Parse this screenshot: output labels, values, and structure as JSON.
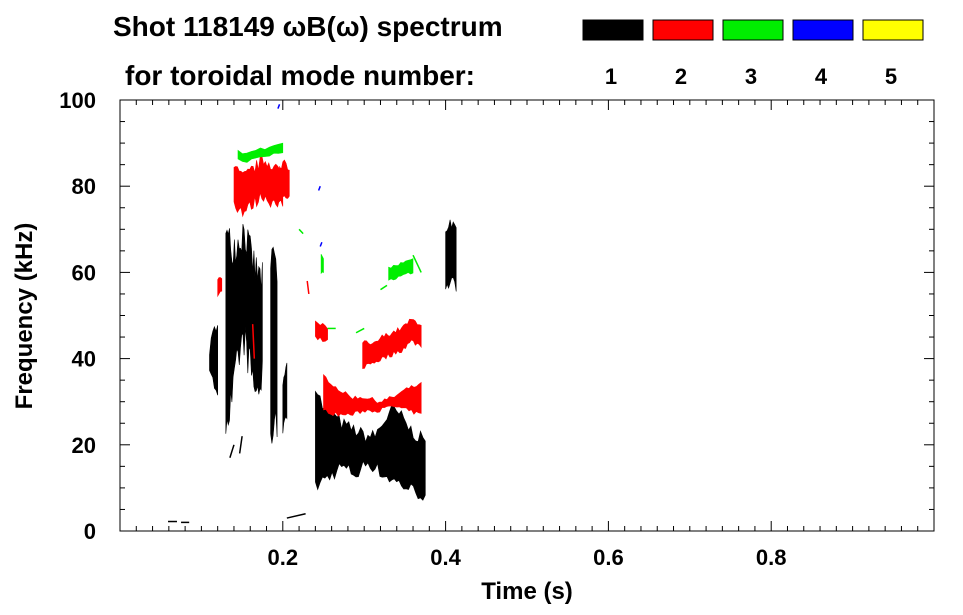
{
  "chart_data": {
    "type": "spectrogram",
    "title_line1": "Shot 118149 ωB(ω) spectrum",
    "title_line2": "for toroidal mode number:",
    "xlabel": "Time (s)",
    "ylabel": "Frequency (kHz)",
    "xlim": [
      0.0,
      1.0
    ],
    "ylim": [
      0,
      100
    ],
    "xticks": [
      0.2,
      0.4,
      0.6,
      0.8
    ],
    "xtick_labels": [
      "0.2",
      "0.4",
      "0.6",
      "0.8"
    ],
    "yticks": [
      0,
      20,
      40,
      60,
      80,
      100
    ],
    "ytick_labels": [
      "0",
      "20",
      "40",
      "60",
      "80",
      "100"
    ],
    "grid": false,
    "legend": [
      {
        "label": "1",
        "color": "#000000"
      },
      {
        "label": "2",
        "color": "#ff0000"
      },
      {
        "label": "3",
        "color": "#00ee00"
      },
      {
        "label": "4",
        "color": "#0000ff"
      },
      {
        "label": "5",
        "color": "#ffff00"
      }
    ],
    "series": [
      {
        "name": "n=1",
        "color": "#000000",
        "bands": [
          {
            "t0": 0.24,
            "t1": 0.375,
            "steps": 46,
            "lo": [
              10,
              12,
              13,
              15,
              14,
              13,
              16,
              15,
              13,
              12,
              11,
              10,
              9,
              8
            ],
            "hi": [
              34,
              28,
              27,
              25,
              24,
              23,
              22,
              22,
              25,
              28,
              27,
              24,
              22,
              21
            ],
            "jitter": 1.6
          },
          {
            "t0": 0.11,
            "t1": 0.12,
            "steps": 5,
            "lo": [
              36,
              34,
              33
            ],
            "hi": [
              42,
              46,
              49
            ],
            "jitter": 1.5
          },
          {
            "t0": 0.13,
            "t1": 0.175,
            "steps": 30,
            "lo": [
              25,
              30,
              40,
              45,
              38,
              32,
              35
            ],
            "hi": [
              68,
              66,
              67,
              70,
              64,
              60,
              58
            ],
            "jitter": 4.5
          },
          {
            "t0": 0.185,
            "t1": 0.193,
            "steps": 5,
            "lo": [
              20,
              26,
              24
            ],
            "hi": [
              60,
              66,
              58
            ],
            "jitter": 3.5
          },
          {
            "t0": 0.2,
            "t1": 0.205,
            "steps": 4,
            "lo": [
              24,
              28
            ],
            "hi": [
              34,
              38
            ],
            "jitter": 2
          },
          {
            "t0": 0.4,
            "t1": 0.413,
            "steps": 7,
            "lo": [
              56,
              58,
              57
            ],
            "hi": [
              70,
              72,
              69
            ],
            "jitter": 1.5
          }
        ],
        "segments": [
          {
            "t0": 0.059,
            "t1": 0.07,
            "f0": 2.2,
            "f1": 2.2
          },
          {
            "t0": 0.075,
            "t1": 0.085,
            "f0": 2.0,
            "f1": 2.0
          },
          {
            "t0": 0.205,
            "t1": 0.228,
            "f0": 3.0,
            "f1": 4.0
          },
          {
            "t0": 0.135,
            "t1": 0.14,
            "f0": 17,
            "f1": 20
          },
          {
            "t0": 0.147,
            "t1": 0.15,
            "f0": 18,
            "f1": 22
          }
        ]
      },
      {
        "name": "n=2",
        "color": "#ff0000",
        "bands": [
          {
            "t0": 0.25,
            "t1": 0.37,
            "steps": 40,
            "lo": [
              28,
              27,
              27,
              28,
              28,
              29,
              28,
              27
            ],
            "hi": [
              36,
              33,
              31,
              31,
              30,
              31,
              33,
              34
            ],
            "jitter": 0.5
          },
          {
            "t0": 0.298,
            "t1": 0.37,
            "steps": 30,
            "lo": [
              38,
              39,
              40,
              41,
              42,
              44,
              43
            ],
            "hi": [
              44,
              43,
              45,
              46,
              47,
              49,
              48
            ],
            "jitter": 0.6
          },
          {
            "t0": 0.14,
            "t1": 0.2,
            "steps": 28,
            "lo": [
              76,
              74,
              76,
              78,
              76,
              75
            ],
            "hi": [
              84,
              82,
              84,
              86,
              85,
              83
            ],
            "jitter": 1.5
          },
          {
            "t0": 0.196,
            "t1": 0.208,
            "steps": 6,
            "lo": [
              77,
              78,
              78
            ],
            "hi": [
              84,
              86,
              84
            ],
            "jitter": 1
          },
          {
            "t0": 0.24,
            "t1": 0.255,
            "steps": 5,
            "lo": [
              45,
              44
            ],
            "hi": [
              49,
              47
            ],
            "jitter": 0.5
          },
          {
            "t0": 0.12,
            "t1": 0.125,
            "steps": 3,
            "lo": [
              55,
              56
            ],
            "hi": [
              58,
              59
            ],
            "jitter": 0.5
          }
        ],
        "segments": [
          {
            "t0": 0.163,
            "t1": 0.165,
            "f0": 48,
            "f1": 40
          },
          {
            "t0": 0.23,
            "t1": 0.232,
            "f0": 58,
            "f1": 55
          }
        ]
      },
      {
        "name": "n=3",
        "color": "#00ee00",
        "bands": [
          {
            "t0": 0.33,
            "t1": 0.36,
            "steps": 10,
            "lo": [
              58,
              59,
              60
            ],
            "hi": [
              61,
              62,
              63
            ],
            "jitter": 0.4
          },
          {
            "t0": 0.247,
            "t1": 0.25,
            "steps": 2,
            "lo": [
              60,
              60
            ],
            "hi": [
              64,
              63
            ],
            "jitter": 0.3
          },
          {
            "t0": 0.145,
            "t1": 0.2,
            "steps": 10,
            "lo": [
              86,
              86,
              87,
              88
            ],
            "hi": [
              88,
              88,
              89,
              90
            ],
            "jitter": 0.5
          }
        ],
        "segments": [
          {
            "t0": 0.32,
            "t1": 0.328,
            "f0": 56,
            "f1": 57
          },
          {
            "t0": 0.255,
            "t1": 0.265,
            "f0": 47,
            "f1": 47
          },
          {
            "t0": 0.29,
            "t1": 0.3,
            "f0": 46,
            "f1": 47
          },
          {
            "t0": 0.36,
            "t1": 0.37,
            "f0": 64,
            "f1": 60
          },
          {
            "t0": 0.22,
            "t1": 0.225,
            "f0": 70,
            "f1": 69
          }
        ]
      },
      {
        "name": "n=4",
        "color": "#0000ff",
        "bands": [],
        "segments": [
          {
            "t0": 0.194,
            "t1": 0.196,
            "f0": 98,
            "f1": 99
          },
          {
            "t0": 0.244,
            "t1": 0.246,
            "f0": 79,
            "f1": 80
          },
          {
            "t0": 0.246,
            "t1": 0.248,
            "f0": 66,
            "f1": 67
          }
        ]
      },
      {
        "name": "n=5",
        "color": "#ffff00",
        "bands": [],
        "segments": []
      }
    ]
  }
}
